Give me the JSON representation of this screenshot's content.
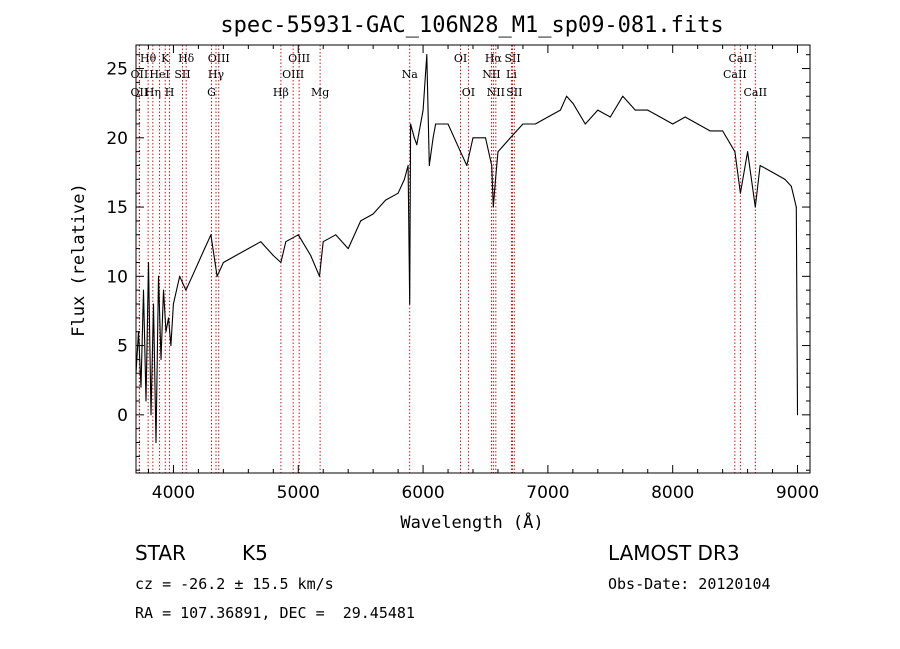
{
  "chart_data": {
    "type": "line",
    "title": "spec-55931-GAC_106N28_M1_sp09-081.fits",
    "xlabel": "Wavelength (Å)",
    "ylabel": "Flux (relative)",
    "xlim": [
      3700,
      9100
    ],
    "ylim": [
      -4.2,
      26.7
    ],
    "xticks": [
      4000,
      5000,
      6000,
      7000,
      8000,
      9000
    ],
    "yticks": [
      0,
      5,
      10,
      15,
      20,
      25
    ],
    "series": [
      {
        "name": "flux",
        "x": [
          3700,
          3720,
          3740,
          3760,
          3780,
          3800,
          3820,
          3840,
          3860,
          3880,
          3900,
          3920,
          3940,
          3960,
          3980,
          4000,
          4050,
          4100,
          4150,
          4200,
          4250,
          4300,
          4350,
          4400,
          4500,
          4600,
          4700,
          4800,
          4861,
          4900,
          5000,
          5100,
          5170,
          5200,
          5300,
          5400,
          5500,
          5600,
          5700,
          5800,
          5850,
          5880,
          5893,
          5900,
          5930,
          5950,
          6000,
          6030,
          6050,
          6080,
          6100,
          6200,
          6300,
          6350,
          6400,
          6500,
          6550,
          6563,
          6580,
          6600,
          6700,
          6800,
          6900,
          7000,
          7100,
          7150,
          7200,
          7300,
          7400,
          7500,
          7600,
          7700,
          7800,
          7900,
          8000,
          8100,
          8200,
          8300,
          8400,
          8498,
          8542,
          8600,
          8662,
          8700,
          8800,
          8900,
          8950,
          8990,
          9000
        ],
        "y": [
          3,
          6,
          2,
          9,
          1,
          11,
          0,
          8,
          -2,
          10,
          4,
          9,
          6,
          7,
          5,
          8,
          10,
          9,
          10,
          11,
          12,
          13,
          10,
          11,
          11.5,
          12,
          12.5,
          11.5,
          11,
          12.5,
          13,
          11.5,
          10,
          12.5,
          13,
          12,
          14,
          14.5,
          15.5,
          16,
          17,
          18,
          8,
          21,
          20,
          19.5,
          22,
          26,
          18,
          20,
          21,
          21,
          19,
          18,
          20,
          20,
          18,
          15,
          17,
          19,
          20,
          21,
          21,
          21.5,
          22,
          23,
          22.5,
          21,
          22,
          21.5,
          23,
          22,
          22,
          21.5,
          21,
          21.5,
          21,
          20.5,
          20.5,
          19,
          16,
          19,
          15,
          18,
          17.5,
          17,
          16.5,
          15,
          0
        ]
      }
    ],
    "line_markers": [
      {
        "label": "Hθ",
        "x": 3797,
        "row": 1
      },
      {
        "label": "OII",
        "x": 3727,
        "row": 2
      },
      {
        "label": "OII",
        "x": 3727,
        "row": 3
      },
      {
        "label": "K",
        "x": 3934,
        "row": 1
      },
      {
        "label": "HeI",
        "x": 3889,
        "row": 2
      },
      {
        "label": "Hη",
        "x": 3835,
        "row": 3
      },
      {
        "label": "H",
        "x": 3969,
        "row": 3
      },
      {
        "label": "Hδ",
        "x": 4102,
        "row": 1
      },
      {
        "label": "SII",
        "x": 4072,
        "row": 2
      },
      {
        "label": "OIII",
        "x": 4363,
        "row": 1
      },
      {
        "label": "Hγ",
        "x": 4341,
        "row": 2
      },
      {
        "label": "G",
        "x": 4305,
        "row": 3
      },
      {
        "label": "Hβ",
        "x": 4861,
        "row": 3
      },
      {
        "label": "OIII",
        "x": 5007,
        "row": 1
      },
      {
        "label": "OIII",
        "x": 4959,
        "row": 2
      },
      {
        "label": "Mg",
        "x": 5175,
        "row": 3
      },
      {
        "label": "Na",
        "x": 5893,
        "row": 2
      },
      {
        "label": "OI",
        "x": 6300,
        "row": 1
      },
      {
        "label": "OI",
        "x": 6363,
        "row": 3
      },
      {
        "label": "Hα",
        "x": 6563,
        "row": 1
      },
      {
        "label": "NII",
        "x": 6548,
        "row": 2
      },
      {
        "label": "NII",
        "x": 6583,
        "row": 3
      },
      {
        "label": "SII",
        "x": 6717,
        "row": 1
      },
      {
        "label": "Li",
        "x": 6708,
        "row": 2
      },
      {
        "label": "SII",
        "x": 6731,
        "row": 3
      },
      {
        "label": "CaII",
        "x": 8542,
        "row": 1
      },
      {
        "label": "CaII",
        "x": 8498,
        "row": 2
      },
      {
        "label": "CaII",
        "x": 8662,
        "row": 3
      }
    ]
  },
  "info": {
    "object_class": "STAR",
    "subclass": "K5",
    "survey": "LAMOST DR3",
    "cz": "cz = -26.2 ± 15.5 km/s",
    "obs_date": "Obs-Date: 20120104",
    "radec": "RA = 107.36891, DEC =  29.45481"
  }
}
